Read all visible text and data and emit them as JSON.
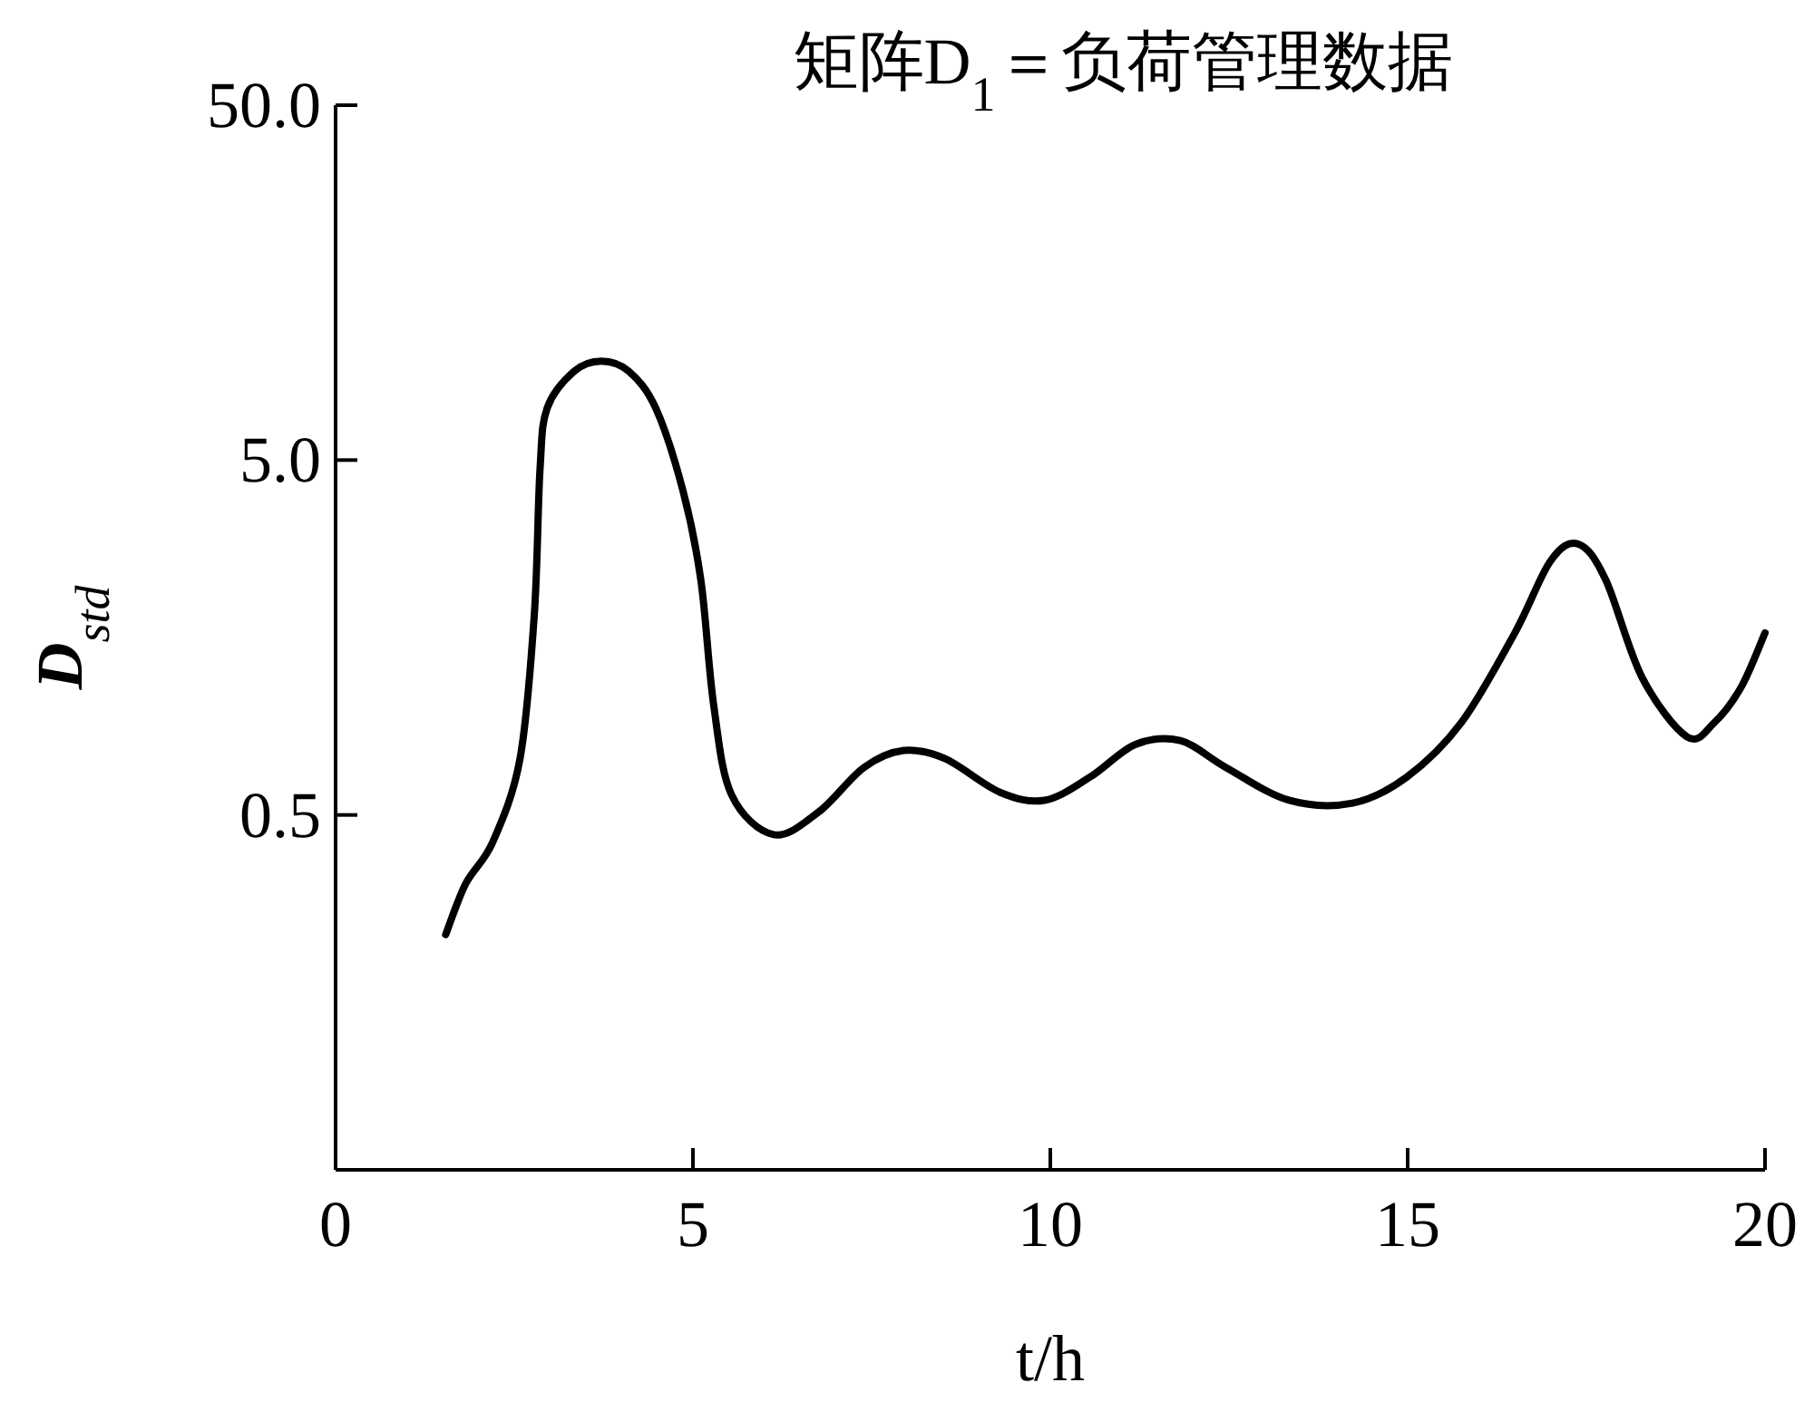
{
  "chart_data": {
    "type": "line",
    "title": "矩阵D$_{1}$＝负荷管理数据",
    "xlabel": "t/h",
    "ylabel": "D$_{std}$",
    "log": "y",
    "grid": false,
    "marker": "none",
    "line_style": "solid",
    "xlim": [
      0,
      20
    ],
    "ylim": [
      0.05,
      50
    ],
    "xticks": [
      0,
      5,
      10,
      15,
      20
    ],
    "yticks": [
      0.5,
      {
        "value": 5,
        "label": "5.0"
      },
      {
        "value": 50,
        "label": "50.0"
      }
    ],
    "series": [
      {
        "color": "#000000",
        "x": [
          1.54,
          1.82,
          2.2,
          2.58,
          2.78,
          2.86,
          2.96,
          3.34,
          3.72,
          4.1,
          4.48,
          4.86,
          5.11,
          5.29,
          5.54,
          6.13,
          6.76,
          7.39,
          7.95,
          8.53,
          9.29,
          9.92,
          10.56,
          11.19,
          11.82,
          12.46,
          13.34,
          14.23,
          14.99,
          15.75,
          16.5,
          17.0,
          17.39,
          17.77,
          18.28,
          18.91,
          19.29,
          19.67,
          20
        ],
        "values": [
          0.23,
          0.32,
          0.42,
          0.72,
          1.83,
          4.7,
          7.0,
          8.9,
          9.5,
          8.9,
          7.0,
          4.1,
          2.3,
          1.02,
          0.57,
          0.44,
          0.51,
          0.68,
          0.76,
          0.72,
          0.58,
          0.55,
          0.64,
          0.79,
          0.81,
          0.68,
          0.55,
          0.54,
          0.64,
          0.91,
          1.63,
          2.6,
          2.9,
          2.3,
          1.22,
          0.83,
          0.91,
          1.15,
          1.63
        ]
      }
    ]
  }
}
